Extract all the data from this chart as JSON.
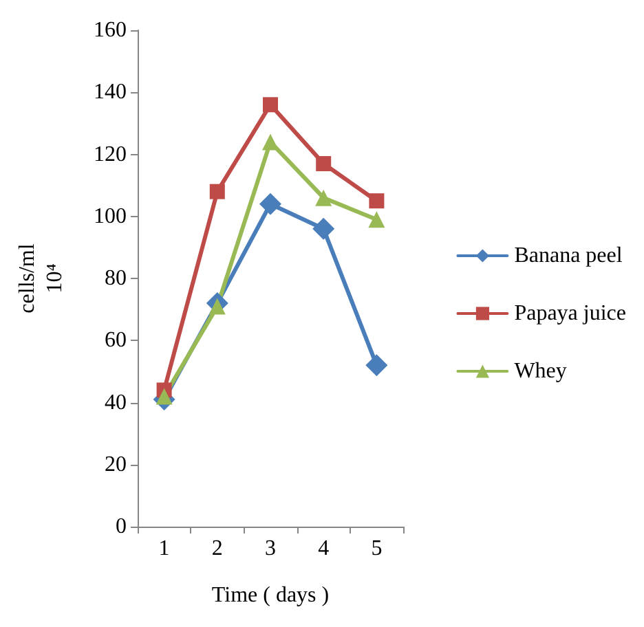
{
  "chart_data": {
    "type": "line",
    "xlabel": "Time ( days )",
    "ylabel": "cells/ml\n10⁴",
    "categories": [
      "1",
      "2",
      "3",
      "4",
      "5"
    ],
    "series": [
      {
        "name": "Banana peel",
        "color": "#4a7ebb",
        "marker": "diamond",
        "values": [
          41,
          72,
          104,
          96,
          52
        ]
      },
      {
        "name": "Papaya juice",
        "color": "#be4b48",
        "marker": "square",
        "values": [
          44,
          108,
          136,
          117,
          105
        ]
      },
      {
        "name": "Whey",
        "color": "#98b954",
        "marker": "triangle",
        "values": [
          42,
          71,
          124,
          106,
          99
        ]
      }
    ],
    "ylim": [
      0,
      160
    ],
    "yticks": [
      0,
      20,
      40,
      60,
      80,
      100,
      120,
      140,
      160
    ],
    "grid": false,
    "legend": "right",
    "line_style": "solid"
  }
}
